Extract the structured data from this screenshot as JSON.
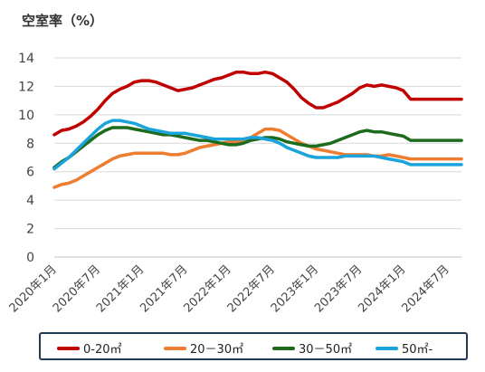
{
  "chart_data": {
    "type": "line",
    "title": "空室率（%）",
    "ylim": [
      0,
      14
    ],
    "yticks": [
      "0",
      "2",
      "4",
      "6",
      "8",
      "10",
      "12",
      "14"
    ],
    "x_tick_labels": [
      "2020年1月",
      "2020年7月",
      "2021年1月",
      "2021年7月",
      "2022年1月",
      "2022年7月",
      "2023年1月",
      "2023年7月",
      "2024年1月",
      "2024年7月"
    ],
    "grid": "horizontal",
    "legend_position": "bottom",
    "x_months": [
      "2020-01",
      "2020-02",
      "2020-03",
      "2020-04",
      "2020-05",
      "2020-06",
      "2020-07",
      "2020-08",
      "2020-09",
      "2020-10",
      "2020-11",
      "2020-12",
      "2021-01",
      "2021-02",
      "2021-03",
      "2021-04",
      "2021-05",
      "2021-06",
      "2021-07",
      "2021-08",
      "2021-09",
      "2021-10",
      "2021-11",
      "2021-12",
      "2022-01",
      "2022-02",
      "2022-03",
      "2022-04",
      "2022-05",
      "2022-06",
      "2022-07",
      "2022-08",
      "2022-09",
      "2022-10",
      "2022-11",
      "2022-12",
      "2023-01",
      "2023-02",
      "2023-03",
      "2023-04",
      "2023-05",
      "2023-06",
      "2023-07",
      "2023-08",
      "2023-09",
      "2023-10",
      "2023-11",
      "2023-12",
      "2024-01",
      "2024-02",
      "2024-03",
      "2024-04",
      "2024-05",
      "2024-06",
      "2024-07",
      "2024-08",
      "2024-09"
    ],
    "series": [
      {
        "name": "0-20㎡",
        "color": "#c00000",
        "values": [
          8.6,
          8.9,
          9.0,
          9.2,
          9.5,
          9.9,
          10.4,
          11.0,
          11.5,
          11.8,
          12.0,
          12.3,
          12.4,
          12.4,
          12.3,
          12.1,
          11.9,
          11.7,
          11.8,
          11.9,
          12.1,
          12.3,
          12.5,
          12.6,
          12.8,
          13.0,
          13.0,
          12.9,
          12.9,
          13.0,
          12.9,
          12.6,
          12.3,
          11.8,
          11.2,
          10.8,
          10.5,
          10.5,
          10.7,
          10.9,
          11.2,
          11.5,
          11.9,
          12.1,
          12.0,
          12.1,
          12.0,
          11.9,
          11.7,
          11.1,
          11.1,
          11.1,
          11.1,
          11.1,
          11.1,
          11.1,
          11.1
        ]
      },
      {
        "name": "20－30㎡",
        "color": "#ed7d31",
        "values": [
          4.9,
          5.1,
          5.2,
          5.4,
          5.7,
          6.0,
          6.3,
          6.6,
          6.9,
          7.1,
          7.2,
          7.3,
          7.3,
          7.3,
          7.3,
          7.3,
          7.2,
          7.2,
          7.3,
          7.5,
          7.7,
          7.8,
          7.9,
          8.0,
          8.1,
          8.1,
          8.2,
          8.4,
          8.7,
          9.0,
          9.0,
          8.9,
          8.6,
          8.3,
          8.0,
          7.8,
          7.6,
          7.5,
          7.4,
          7.3,
          7.2,
          7.2,
          7.2,
          7.2,
          7.1,
          7.1,
          7.2,
          7.1,
          7.0,
          6.9,
          6.9,
          6.9,
          6.9,
          6.9,
          6.9,
          6.9,
          6.9
        ]
      },
      {
        "name": "30－50㎡",
        "color": "#1e6b1e",
        "values": [
          6.3,
          6.7,
          7.0,
          7.4,
          7.8,
          8.2,
          8.6,
          8.9,
          9.1,
          9.1,
          9.1,
          9.0,
          8.9,
          8.8,
          8.7,
          8.6,
          8.6,
          8.5,
          8.4,
          8.3,
          8.2,
          8.2,
          8.1,
          8.0,
          7.9,
          7.9,
          8.0,
          8.2,
          8.3,
          8.4,
          8.4,
          8.3,
          8.1,
          8.0,
          7.9,
          7.8,
          7.8,
          7.9,
          8.0,
          8.2,
          8.4,
          8.6,
          8.8,
          8.9,
          8.8,
          8.8,
          8.7,
          8.6,
          8.5,
          8.2,
          8.2,
          8.2,
          8.2,
          8.2,
          8.2,
          8.2,
          8.2
        ]
      },
      {
        "name": "50㎡-",
        "color": "#1ba3dc",
        "values": [
          6.2,
          6.6,
          7.0,
          7.5,
          8.0,
          8.5,
          9.0,
          9.4,
          9.6,
          9.6,
          9.5,
          9.4,
          9.2,
          9.0,
          8.9,
          8.8,
          8.7,
          8.7,
          8.7,
          8.6,
          8.5,
          8.4,
          8.3,
          8.3,
          8.3,
          8.3,
          8.3,
          8.4,
          8.4,
          8.3,
          8.2,
          8.0,
          7.7,
          7.5,
          7.3,
          7.1,
          7.0,
          7.0,
          7.0,
          7.0,
          7.1,
          7.1,
          7.1,
          7.1,
          7.1,
          7.0,
          6.9,
          6.8,
          6.7,
          6.5,
          6.5,
          6.5,
          6.5,
          6.5,
          6.5,
          6.5,
          6.5
        ]
      }
    ]
  }
}
